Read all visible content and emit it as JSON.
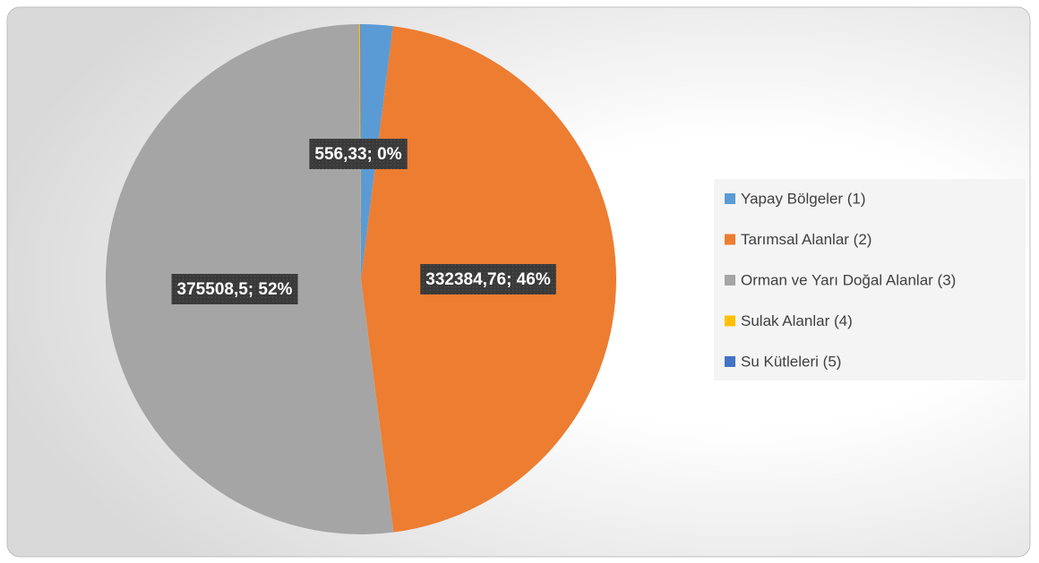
{
  "chart_data": {
    "type": "pie",
    "categories": [
      "Yapay Bölgeler (1)",
      "Tarımsal Alanlar (2)",
      "Orman ve Yarı Doğal Alanlar (3)",
      "Sulak Alanlar (4)",
      "Su Kütleleri (5)"
    ],
    "values": [
      14500,
      332384.76,
      375508.5,
      556.33,
      300
    ],
    "value_labels": [
      null,
      "332384,76; 46%",
      "375508,5; 52%",
      "556,33; 0%",
      null
    ],
    "colors": [
      "#5b9bd5",
      "#ed7d31",
      "#a5a5a5",
      "#ffc000",
      "#4472c4"
    ],
    "legend": "right"
  }
}
